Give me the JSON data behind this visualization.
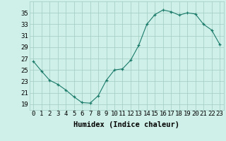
{
  "x": [
    0,
    1,
    2,
    3,
    4,
    5,
    6,
    7,
    8,
    9,
    10,
    11,
    12,
    13,
    14,
    15,
    16,
    17,
    18,
    19,
    20,
    21,
    22,
    23
  ],
  "y": [
    26.5,
    24.8,
    23.2,
    22.5,
    21.5,
    20.3,
    19.3,
    19.2,
    20.5,
    23.2,
    25.0,
    25.2,
    26.7,
    29.3,
    33.0,
    34.7,
    35.5,
    35.2,
    34.6,
    35.0,
    34.8,
    33.0,
    32.0,
    29.5
  ],
  "ylim": [
    18,
    37
  ],
  "yticks": [
    19,
    21,
    23,
    25,
    27,
    29,
    31,
    33,
    35
  ],
  "xlabel": "Humidex (Indice chaleur)",
  "line_color": "#1a7a6a",
  "marker_color": "#1a7a6a",
  "bg_color": "#cff0e8",
  "grid_color": "#a0ccc0",
  "tick_label_fontsize": 6.5,
  "xlabel_fontsize": 7.5
}
